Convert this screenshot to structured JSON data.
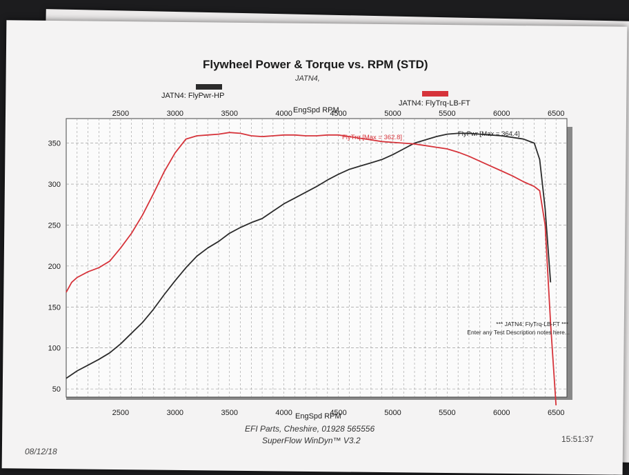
{
  "header": {
    "title": "Flywheel Power & Torque vs. RPM (STD)",
    "subtitle": "JATN4,"
  },
  "legend": {
    "power_label": "JATN4: FlyPwr-HP",
    "torque_label": "JATN4: FlyTrq-LB-FT"
  },
  "notes": {
    "line1": "*** JATN4: FlyTrq-LB-FT ***",
    "line2": "Enter any Test Description notes here..."
  },
  "footer": {
    "company": "EFI Parts, Cheshire, 01928 565556",
    "software": "SuperFlow WinDyn™ V3.2",
    "date": "08/12/18",
    "time": "15:51:37"
  },
  "chart_data": {
    "type": "line",
    "title": "Flywheel Power & Torque vs. RPM (STD)",
    "xlabel": "EngSpd RPM",
    "ylabel": "",
    "xlim": [
      2000,
      6600
    ],
    "ylim": [
      40,
      380
    ],
    "x_ticks": [
      2500,
      3000,
      3500,
      4000,
      4500,
      5000,
      5500,
      6000,
      6500
    ],
    "top_ticks": [
      2500,
      3000,
      3500,
      4000,
      4500,
      5000,
      5500,
      6000,
      6500
    ],
    "y_ticks": [
      50,
      100,
      150,
      200,
      250,
      300,
      350
    ],
    "grid": true,
    "legend_position": "top",
    "series": [
      {
        "name": "JATN4: FlyPwr-HP",
        "color": "#2b2b2b",
        "annotation": "FlyPwr [Max = 364.4]",
        "x": [
          2000,
          2100,
          2200,
          2300,
          2400,
          2500,
          2600,
          2700,
          2800,
          2900,
          3000,
          3100,
          3200,
          3300,
          3400,
          3500,
          3600,
          3700,
          3800,
          3900,
          4000,
          4100,
          4200,
          4300,
          4400,
          4500,
          4600,
          4700,
          4800,
          4900,
          5000,
          5100,
          5200,
          5300,
          5400,
          5500,
          5600,
          5700,
          5800,
          5900,
          6000,
          6100,
          6200,
          6300,
          6350,
          6400,
          6450
        ],
        "values": [
          63,
          72,
          79,
          86,
          94,
          105,
          118,
          131,
          147,
          165,
          182,
          198,
          212,
          222,
          230,
          240,
          247,
          253,
          258,
          267,
          276,
          283,
          290,
          297,
          305,
          312,
          318,
          322,
          326,
          330,
          336,
          343,
          350,
          354,
          358,
          361,
          362,
          362,
          361,
          360,
          359,
          357,
          355,
          350,
          330,
          270,
          180
        ]
      },
      {
        "name": "JATN4: FlyTrq-LB-FT",
        "color": "#d6333a",
        "annotation": "FlyTrq [Max = 362.8]",
        "x": [
          2000,
          2050,
          2100,
          2200,
          2300,
          2400,
          2500,
          2600,
          2700,
          2800,
          2900,
          3000,
          3100,
          3200,
          3300,
          3400,
          3500,
          3600,
          3700,
          3800,
          3900,
          4000,
          4100,
          4200,
          4300,
          4400,
          4500,
          4600,
          4700,
          4800,
          4900,
          5000,
          5100,
          5200,
          5300,
          5400,
          5500,
          5600,
          5700,
          5800,
          5900,
          6000,
          6100,
          6200,
          6300,
          6350,
          6400,
          6450,
          6500
        ],
        "values": [
          168,
          180,
          186,
          193,
          198,
          206,
          222,
          240,
          262,
          288,
          315,
          338,
          355,
          359,
          360,
          361,
          363,
          362,
          359,
          358,
          359,
          360,
          360,
          359,
          359,
          360,
          360,
          358,
          356,
          354,
          352,
          351,
          350,
          349,
          347,
          345,
          343,
          339,
          334,
          328,
          322,
          316,
          310,
          303,
          297,
          292,
          250,
          130,
          30
        ]
      }
    ]
  }
}
